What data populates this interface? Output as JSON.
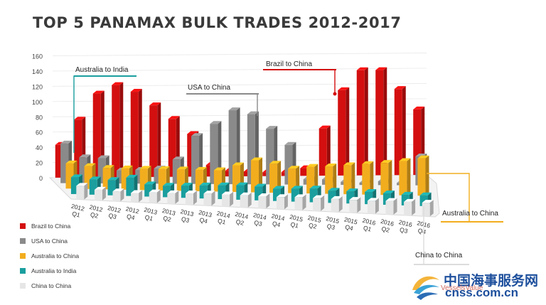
{
  "chart_data": {
    "type": "bar",
    "title": "TOP 5 PANAMAX BULK TRADES 2012-2017",
    "categories": [
      [
        "2012",
        "Q1"
      ],
      [
        "2012",
        "Q2"
      ],
      [
        "2012",
        "Q3"
      ],
      [
        "2012",
        "Q4"
      ],
      [
        "2013",
        "Q1"
      ],
      [
        "2013",
        "Q2"
      ],
      [
        "2013",
        "Q3"
      ],
      [
        "2013",
        "Q4"
      ],
      [
        "2014",
        "Q1"
      ],
      [
        "2014",
        "Q2"
      ],
      [
        "2014",
        "Q3"
      ],
      [
        "2014",
        "Q4"
      ],
      [
        "2015",
        "Q1"
      ],
      [
        "2015",
        "Q2"
      ],
      [
        "2015",
        "Q3"
      ],
      [
        "2015",
        "Q4"
      ],
      [
        "2016",
        "Q1"
      ],
      [
        "2016",
        "Q2"
      ],
      [
        "2016",
        "Q3"
      ],
      [
        "2016",
        "Q4"
      ]
    ],
    "yticks": [
      "0",
      "20",
      "40",
      "60",
      "80",
      "100",
      "120",
      "140",
      "160"
    ],
    "ylim": [
      0,
      160
    ],
    "series": [
      {
        "name": "Brazil to China",
        "color": "#d40f0f",
        "values": [
          43,
          76,
          110,
          121,
          112,
          94,
          76,
          56,
          15,
          7,
          6,
          5,
          5,
          10,
          62,
          112,
          138,
          138,
          113,
          86
        ]
      },
      {
        "name": "USA to China",
        "color": "#8a8a8a",
        "values": [
          52,
          34,
          33,
          17,
          18,
          20,
          32,
          63,
          79,
          97,
          92,
          73,
          52,
          7,
          7,
          4,
          3,
          5,
          3,
          38
        ]
      },
      {
        "name": "Australia to China",
        "color": "#f2ad1e",
        "values": [
          33,
          30,
          28,
          28,
          28,
          28,
          28,
          28,
          28,
          35,
          42,
          38,
          32,
          35,
          36,
          38,
          40,
          42,
          45,
          49
        ]
      },
      {
        "name": "Australia to India",
        "color": "#1a9e9e",
        "values": [
          22,
          20,
          20,
          24,
          16,
          15,
          16,
          17,
          18,
          19,
          18,
          16,
          17,
          18,
          16,
          16,
          16,
          15,
          14,
          14
        ]
      },
      {
        "name": "China to China",
        "color": "#e6e6e6",
        "values": [
          18,
          14,
          13,
          12,
          14,
          14,
          15,
          16,
          16,
          16,
          16,
          16,
          17,
          17,
          17,
          17,
          17,
          18,
          18,
          18
        ]
      }
    ],
    "callouts": [
      {
        "series": "Australia to India",
        "label": "Australia to India"
      },
      {
        "series": "USA to China",
        "label": "USA to China"
      },
      {
        "series": "Brazil to China",
        "label": "Brazil to China"
      },
      {
        "series": "Australia to China",
        "label": "Australia to China"
      },
      {
        "series": "China to China",
        "label": "China to China"
      }
    ]
  },
  "watermark": {
    "cn": "中国海事服务网",
    "en": "cnss.com.cn",
    "sub": "VesselsValue"
  }
}
